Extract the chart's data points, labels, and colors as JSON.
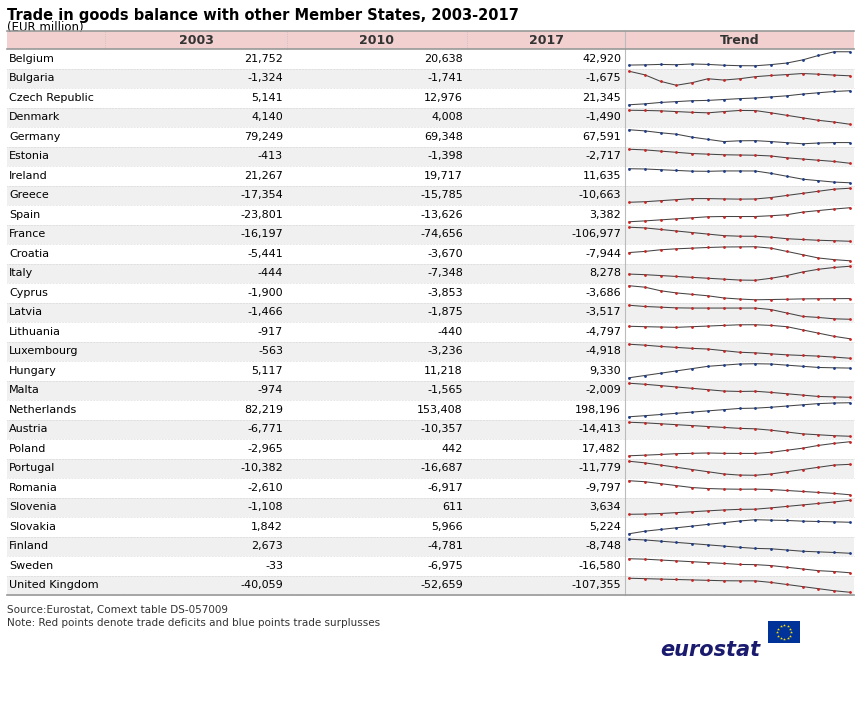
{
  "title": "Trade in goods balance with other Member States, 2003-2017",
  "subtitle": "(EUR million)",
  "source": "Source:Eurostat, Comext table DS-057009",
  "note": "Note: Red points denote trade deficits and blue points trade surplusses",
  "rows": [
    {
      "country": "Belgium",
      "v2003": "21,752",
      "v2010": "20,638",
      "v2017": "42,920",
      "surplus": true
    },
    {
      "country": "Bulgaria",
      "v2003": "-1,324",
      "v2010": "-1,741",
      "v2017": "-1,675",
      "surplus": false
    },
    {
      "country": "Czech Republic",
      "v2003": "5,141",
      "v2010": "12,976",
      "v2017": "21,345",
      "surplus": true
    },
    {
      "country": "Denmark",
      "v2003": "4,140",
      "v2010": "4,008",
      "v2017": "-1,490",
      "surplus": false
    },
    {
      "country": "Germany",
      "v2003": "79,249",
      "v2010": "69,348",
      "v2017": "67,591",
      "surplus": true
    },
    {
      "country": "Estonia",
      "v2003": "-413",
      "v2010": "-1,398",
      "v2017": "-2,717",
      "surplus": false
    },
    {
      "country": "Ireland",
      "v2003": "21,267",
      "v2010": "19,717",
      "v2017": "11,635",
      "surplus": true
    },
    {
      "country": "Greece",
      "v2003": "-17,354",
      "v2010": "-15,785",
      "v2017": "-10,663",
      "surplus": false
    },
    {
      "country": "Spain",
      "v2003": "-23,801",
      "v2010": "-13,626",
      "v2017": "3,382",
      "surplus": false
    },
    {
      "country": "France",
      "v2003": "-16,197",
      "v2010": "-74,656",
      "v2017": "-106,977",
      "surplus": false
    },
    {
      "country": "Croatia",
      "v2003": "-5,441",
      "v2010": "-3,670",
      "v2017": "-7,944",
      "surplus": false
    },
    {
      "country": "Italy",
      "v2003": "-444",
      "v2010": "-7,348",
      "v2017": "8,278",
      "surplus": false
    },
    {
      "country": "Cyprus",
      "v2003": "-1,900",
      "v2010": "-3,853",
      "v2017": "-3,686",
      "surplus": false
    },
    {
      "country": "Latvia",
      "v2003": "-1,466",
      "v2010": "-1,875",
      "v2017": "-3,517",
      "surplus": false
    },
    {
      "country": "Lithuania",
      "v2003": "-917",
      "v2010": "-440",
      "v2017": "-4,797",
      "surplus": false
    },
    {
      "country": "Luxembourg",
      "v2003": "-563",
      "v2010": "-3,236",
      "v2017": "-4,918",
      "surplus": false
    },
    {
      "country": "Hungary",
      "v2003": "5,117",
      "v2010": "11,218",
      "v2017": "9,330",
      "surplus": true
    },
    {
      "country": "Malta",
      "v2003": "-974",
      "v2010": "-1,565",
      "v2017": "-2,009",
      "surplus": false
    },
    {
      "country": "Netherlands",
      "v2003": "82,219",
      "v2010": "153,408",
      "v2017": "198,196",
      "surplus": true
    },
    {
      "country": "Austria",
      "v2003": "-6,771",
      "v2010": "-10,357",
      "v2017": "-14,413",
      "surplus": false
    },
    {
      "country": "Poland",
      "v2003": "-2,965",
      "v2010": "442",
      "v2017": "17,482",
      "surplus": false
    },
    {
      "country": "Portugal",
      "v2003": "-10,382",
      "v2010": "-16,687",
      "v2017": "-11,779",
      "surplus": false
    },
    {
      "country": "Romania",
      "v2003": "-2,610",
      "v2010": "-6,917",
      "v2017": "-9,797",
      "surplus": false
    },
    {
      "country": "Slovenia",
      "v2003": "-1,108",
      "v2010": "611",
      "v2017": "3,634",
      "surplus": false
    },
    {
      "country": "Slovakia",
      "v2003": "1,842",
      "v2010": "5,966",
      "v2017": "5,224",
      "surplus": true
    },
    {
      "country": "Finland",
      "v2003": "2,673",
      "v2010": "-4,781",
      "v2017": "-8,748",
      "surplus": true
    },
    {
      "country": "Sweden",
      "v2003": "-33",
      "v2010": "-6,975",
      "v2017": "-16,580",
      "surplus": false
    },
    {
      "country": "United Kingdom",
      "v2003": "-40,059",
      "v2010": "-52,659",
      "v2017": "-107,355",
      "surplus": false
    }
  ],
  "trend_data": {
    "Belgium": [
      21752,
      22100,
      22800,
      22300,
      23500,
      22800,
      21500,
      20800,
      20638,
      22500,
      25000,
      30000,
      37000,
      43000,
      42920
    ],
    "Bulgaria": [
      -1324,
      -1600,
      -2100,
      -2400,
      -2200,
      -1900,
      -2000,
      -1900,
      -1741,
      -1650,
      -1580,
      -1500,
      -1550,
      -1620,
      -1675
    ],
    "Czech Republic": [
      5141,
      6200,
      7800,
      8800,
      9800,
      10200,
      11200,
      12200,
      12976,
      14200,
      15500,
      17500,
      19000,
      20500,
      21345
    ],
    "Denmark": [
      4140,
      4050,
      3900,
      3600,
      3300,
      3100,
      3600,
      4050,
      4008,
      3100,
      2100,
      1100,
      100,
      -600,
      -1490
    ],
    "Germany": [
      79249,
      78200,
      76500,
      75200,
      72500,
      70500,
      68500,
      69200,
      69348,
      68500,
      67500,
      66500,
      67200,
      67600,
      67591
    ],
    "Estonia": [
      -413,
      -520,
      -720,
      -920,
      -1120,
      -1220,
      -1320,
      -1360,
      -1398,
      -1520,
      -1820,
      -2020,
      -2220,
      -2420,
      -2717
    ],
    "Ireland": [
      21267,
      21100,
      20600,
      20100,
      19600,
      19500,
      19750,
      19750,
      19717,
      18100,
      16100,
      14100,
      13100,
      12100,
      11635
    ],
    "Greece": [
      -17354,
      -17100,
      -16600,
      -16100,
      -15600,
      -15600,
      -15750,
      -15850,
      -15785,
      -15100,
      -14100,
      -13100,
      -12100,
      -11100,
      -10663
    ],
    "Spain": [
      -23801,
      -22100,
      -20100,
      -18100,
      -16100,
      -14100,
      -13600,
      -13650,
      -13626,
      -12100,
      -10100,
      -5100,
      -2100,
      900,
      3382
    ],
    "France": [
      -16197,
      -20500,
      -30500,
      -40500,
      -50500,
      -60500,
      -70500,
      -74200,
      -74656,
      -80500,
      -90500,
      -95500,
      -100500,
      -103500,
      -106977
    ],
    "Croatia": [
      -5441,
      -5100,
      -4600,
      -4300,
      -4100,
      -3900,
      -3750,
      -3720,
      -3670,
      -4100,
      -5100,
      -6100,
      -7100,
      -7600,
      -7944
    ],
    "Italy": [
      -444,
      -1100,
      -2100,
      -3100,
      -4100,
      -5100,
      -6100,
      -7100,
      -7348,
      -5100,
      -2100,
      1900,
      4900,
      6900,
      8278
    ],
    "Cyprus": [
      -1900,
      -2100,
      -2600,
      -2900,
      -3100,
      -3300,
      -3600,
      -3750,
      -3853,
      -3820,
      -3780,
      -3730,
      -3710,
      -3700,
      -3686
    ],
    "Latvia": [
      -1466,
      -1650,
      -1750,
      -1850,
      -1880,
      -1880,
      -1880,
      -1880,
      -1875,
      -2100,
      -2600,
      -3100,
      -3250,
      -3450,
      -3517
    ],
    "Lithuania": [
      -917,
      -1050,
      -1150,
      -1250,
      -1050,
      -850,
      -650,
      -460,
      -440,
      -650,
      -1050,
      -2050,
      -3050,
      -4050,
      -4797
    ],
    "Luxembourg": [
      -563,
      -850,
      -1250,
      -1550,
      -1850,
      -2050,
      -2550,
      -3050,
      -3236,
      -3550,
      -3850,
      -4050,
      -4250,
      -4550,
      -4918
    ],
    "Hungary": [
      5117,
      6100,
      7100,
      8100,
      9100,
      10100,
      10600,
      11100,
      11218,
      11100,
      10600,
      10100,
      9600,
      9450,
      9330
    ],
    "Malta": [
      -974,
      -1050,
      -1150,
      -1250,
      -1350,
      -1450,
      -1550,
      -1580,
      -1565,
      -1650,
      -1750,
      -1850,
      -1950,
      -1980,
      -2009
    ],
    "Netherlands": [
      82219,
      91000,
      101000,
      111000,
      121000,
      131000,
      141000,
      151000,
      153408,
      161000,
      171000,
      181000,
      191000,
      196000,
      198196
    ],
    "Austria": [
      -6771,
      -7100,
      -7600,
      -8100,
      -8600,
      -9100,
      -9600,
      -10100,
      -10357,
      -11100,
      -12100,
      -13100,
      -13600,
      -14100,
      -14413
    ],
    "Poland": [
      -2965,
      -2100,
      -1100,
      100,
      600,
      1100,
      600,
      450,
      442,
      2100,
      5100,
      8100,
      12100,
      15100,
      17482
    ],
    "Portugal": [
      -10382,
      -11100,
      -12100,
      -13100,
      -14100,
      -15100,
      -16100,
      -16600,
      -16687,
      -16100,
      -15100,
      -14100,
      -13100,
      -12100,
      -11779
    ],
    "Romania": [
      -2610,
      -3100,
      -4100,
      -5100,
      -6100,
      -6600,
      -6850,
      -6950,
      -6917,
      -7100,
      -7600,
      -8100,
      -8600,
      -9100,
      -9797
    ],
    "Slovenia": [
      -1108,
      -1050,
      -850,
      -550,
      -250,
      50,
      350,
      550,
      611,
      1050,
      1550,
      2050,
      2550,
      3050,
      3634
    ],
    "Slovakia": [
      1842,
      2600,
      3100,
      3600,
      4100,
      4600,
      5100,
      5600,
      5966,
      5850,
      5750,
      5550,
      5450,
      5350,
      5224
    ],
    "Finland": [
      2673,
      2100,
      1100,
      100,
      -900,
      -1900,
      -2900,
      -3900,
      -4781,
      -5100,
      -6100,
      -7100,
      -7600,
      -8100,
      -8748
    ],
    "Sweden": [
      -33,
      -550,
      -1550,
      -2550,
      -3550,
      -4550,
      -5550,
      -6750,
      -6975,
      -8100,
      -10100,
      -12100,
      -14100,
      -15100,
      -16580
    ],
    "United Kingdom": [
      -40059,
      -42100,
      -44100,
      -46100,
      -48100,
      -50100,
      -52100,
      -52600,
      -52659,
      -60100,
      -70100,
      -80100,
      -90100,
      -100100,
      -107355
    ]
  },
  "header_bg": "#f2d0d0",
  "row_bg_light": "#ffffff",
  "row_bg_dark": "#f0f0f0",
  "surplus_color": "#1a3a8a",
  "deficit_color": "#cc2222",
  "line_color": "#444444",
  "fig_bg": "#ffffff",
  "border_color": "#bbbbbb",
  "text_color": "#000000",
  "header_text_color": "#333333"
}
